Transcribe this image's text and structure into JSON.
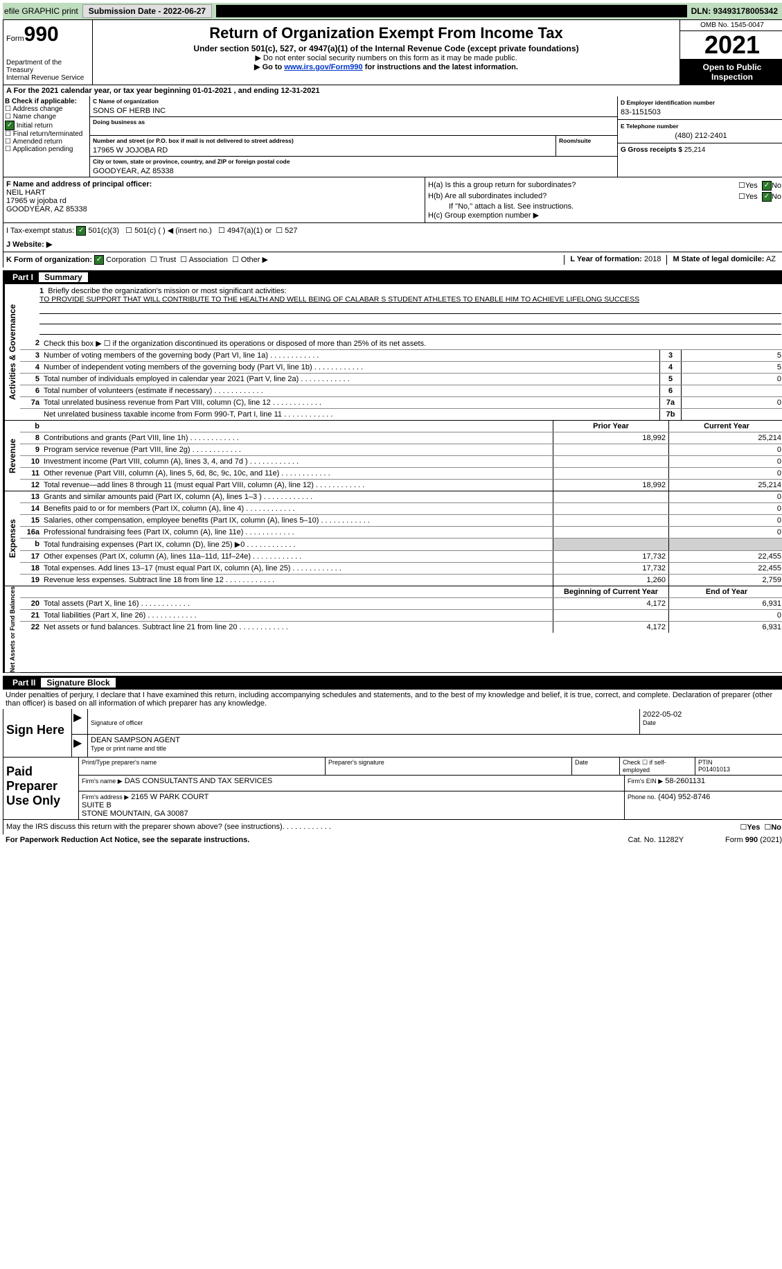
{
  "topbar": {
    "efile": "efile GRAPHIC print",
    "submission": "Submission Date - 2022-06-27",
    "dln": "DLN: 93493178005342"
  },
  "header": {
    "form_word": "Form",
    "form_num": "990",
    "dept": "Department of the Treasury\nInternal Revenue Service",
    "title": "Return of Organization Exempt From Income Tax",
    "subtitle": "Under section 501(c), 527, or 4947(a)(1) of the Internal Revenue Code (except private foundations)",
    "line1": "▶ Do not enter social security numbers on this form as it may be made public.",
    "line2_a": "▶ Go to ",
    "line2_link": "www.irs.gov/Form990",
    "line2_b": " for instructions and the latest information.",
    "omb": "OMB No. 1545-0047",
    "year": "2021",
    "open": "Open to Public Inspection"
  },
  "lineA": "A For the 2021 calendar year, or tax year beginning 01-01-2021    , and ending 12-31-2021",
  "B": {
    "label": "B Check if applicable:",
    "opts": [
      "Address change",
      "Name change",
      "Initial return",
      "Final return/terminated",
      "Amended return",
      "Application pending"
    ],
    "checked": [
      false,
      false,
      true,
      false,
      false,
      false
    ]
  },
  "C": {
    "name_label": "C Name of organization",
    "name": "SONS OF HERB INC",
    "dba_label": "Doing business as",
    "dba": "",
    "street_label": "Number and street (or P.O. box if mail is not delivered to street address)",
    "street": "17965 W JOJOBA RD",
    "room_label": "Room/suite",
    "city_label": "City or town, state or province, country, and ZIP or foreign postal code",
    "city": "GOODYEAR, AZ  85338"
  },
  "D": {
    "label": "D Employer identification number",
    "val": "83-1151503"
  },
  "E": {
    "label": "E Telephone number",
    "val": "(480) 212-2401"
  },
  "G": {
    "label": "G Gross receipts $",
    "val": "25,214"
  },
  "F": {
    "label": "F  Name and address of principal officer:",
    "name": "NEIL HART",
    "addr1": "17965 w jojoba rd",
    "addr2": "GOODYEAR, AZ  85338"
  },
  "H": {
    "a": "H(a)  Is this a group return for subordinates?",
    "a_yes": "Yes",
    "a_no": "No",
    "a_val": "No",
    "b": "H(b)  Are all subordinates included?",
    "b_yes": "Yes",
    "b_no": "No",
    "b_val": "No",
    "b_note": "If \"No,\" attach a list. See instructions.",
    "c": "H(c)  Group exemption number ▶"
  },
  "I": {
    "label": "I    Tax-exempt status:",
    "o1": "501(c)(3)",
    "o2": "501(c) (  ) ◀ (insert no.)",
    "o3": "4947(a)(1) or",
    "o4": "527"
  },
  "J": {
    "label": "J   Website: ▶"
  },
  "K": {
    "label": "K Form of organization:",
    "o1": "Corporation",
    "o2": "Trust",
    "o3": "Association",
    "o4": "Other ▶"
  },
  "L": {
    "label": "L Year of formation:",
    "val": "2018"
  },
  "M": {
    "label": "M State of legal domicile:",
    "val": "AZ"
  },
  "part1": {
    "num": "Part I",
    "title": "Summary",
    "line1_label": "Briefly describe the organization's mission or most significant activities:",
    "mission": "TO PROVIDE SUPPORT THAT WILL CONTRIBUTE TO THE HEALTH AND WELL BEING OF CALABAR S STUDENT ATHLETES TO ENABLE HIM TO ACHIEVE LIFELONG SUCCESS",
    "line2": "Check this box ▶ ☐  if the organization discontinued its operations or disposed of more than 25% of its net assets.",
    "rows": [
      {
        "n": "3",
        "d": "Number of voting members of the governing body (Part VI, line 1a)",
        "box": "3",
        "v": "5"
      },
      {
        "n": "4",
        "d": "Number of independent voting members of the governing body (Part VI, line 1b)",
        "box": "4",
        "v": "5"
      },
      {
        "n": "5",
        "d": "Total number of individuals employed in calendar year 2021 (Part V, line 2a)",
        "box": "5",
        "v": "0"
      },
      {
        "n": "6",
        "d": "Total number of volunteers (estimate if necessary)",
        "box": "6",
        "v": ""
      },
      {
        "n": "7a",
        "d": "Total unrelated business revenue from Part VIII, column (C), line 12",
        "box": "7a",
        "v": "0"
      },
      {
        "n": "",
        "d": "Net unrelated business taxable income from Form 990-T, Part I, line 11",
        "box": "7b",
        "v": ""
      }
    ],
    "col_prior": "Prior Year",
    "col_curr": "Current Year",
    "rev": [
      {
        "n": "8",
        "d": "Contributions and grants (Part VIII, line 1h)",
        "p": "18,992",
        "c": "25,214"
      },
      {
        "n": "9",
        "d": "Program service revenue (Part VIII, line 2g)",
        "p": "",
        "c": "0"
      },
      {
        "n": "10",
        "d": "Investment income (Part VIII, column (A), lines 3, 4, and 7d )",
        "p": "",
        "c": "0"
      },
      {
        "n": "11",
        "d": "Other revenue (Part VIII, column (A), lines 5, 6d, 8c, 9c, 10c, and 11e)",
        "p": "",
        "c": "0"
      },
      {
        "n": "12",
        "d": "Total revenue—add lines 8 through 11 (must equal Part VIII, column (A), line 12)",
        "p": "18,992",
        "c": "25,214"
      }
    ],
    "exp": [
      {
        "n": "13",
        "d": "Grants and similar amounts paid (Part IX, column (A), lines 1–3 )",
        "p": "",
        "c": "0"
      },
      {
        "n": "14",
        "d": "Benefits paid to or for members (Part IX, column (A), line 4)",
        "p": "",
        "c": "0"
      },
      {
        "n": "15",
        "d": "Salaries, other compensation, employee benefits (Part IX, column (A), lines 5–10)",
        "p": "",
        "c": "0"
      },
      {
        "n": "16a",
        "d": "Professional fundraising fees (Part IX, column (A), line 11e)",
        "p": "",
        "c": "0"
      },
      {
        "n": "b",
        "d": "Total fundraising expenses (Part IX, column (D), line 25) ▶0",
        "p": "shade",
        "c": "shade"
      },
      {
        "n": "17",
        "d": "Other expenses (Part IX, column (A), lines 11a–11d, 11f–24e)",
        "p": "17,732",
        "c": "22,455"
      },
      {
        "n": "18",
        "d": "Total expenses. Add lines 13–17 (must equal Part IX, column (A), line 25)",
        "p": "17,732",
        "c": "22,455"
      },
      {
        "n": "19",
        "d": "Revenue less expenses. Subtract line 18 from line 12",
        "p": "1,260",
        "c": "2,759"
      }
    ],
    "col_beg": "Beginning of Current Year",
    "col_end": "End of Year",
    "net": [
      {
        "n": "20",
        "d": "Total assets (Part X, line 16)",
        "p": "4,172",
        "c": "6,931"
      },
      {
        "n": "21",
        "d": "Total liabilities (Part X, line 26)",
        "p": "",
        "c": "0"
      },
      {
        "n": "22",
        "d": "Net assets or fund balances. Subtract line 21 from line 20",
        "p": "4,172",
        "c": "6,931"
      }
    ],
    "side_ag": "Activities & Governance",
    "side_rev": "Revenue",
    "side_exp": "Expenses",
    "side_net": "Net Assets or Fund Balances"
  },
  "part2": {
    "num": "Part II",
    "title": "Signature Block",
    "decl": "Under penalties of perjury, I declare that I have examined this return, including accompanying schedules and statements, and to the best of my knowledge and belief, it is true, correct, and complete. Declaration of preparer (other than officer) is based on all information of which preparer has any knowledge."
  },
  "sign": {
    "label": "Sign Here",
    "sig_label": "Signature of officer",
    "date_label": "Date",
    "date": "2022-05-02",
    "name": "DEAN SAMPSON  AGENT",
    "name_label": "Type or print name and title"
  },
  "prep": {
    "label": "Paid Preparer Use Only",
    "c1": "Print/Type preparer's name",
    "c2": "Preparer's signature",
    "c3": "Date",
    "c4": "Check ☐ if self-employed",
    "c5_label": "PTIN",
    "c5": "P01401013",
    "firm_label": "Firm's name    ▶",
    "firm": "DAS CONSULTANTS AND TAX SERVICES",
    "ein_label": "Firm's EIN ▶",
    "ein": "58-2601131",
    "addr_label": "Firm's address ▶",
    "addr": "2165 W PARK COURT\nSUITE B\nSTONE MOUNTAIN, GA  30087",
    "phone_label": "Phone no.",
    "phone": "(404) 952-8746"
  },
  "may": {
    "q": "May the IRS discuss this return with the preparer shown above? (see instructions)",
    "yes": "Yes",
    "no": "No"
  },
  "footer": {
    "l": "For Paperwork Reduction Act Notice, see the separate instructions.",
    "m": "Cat. No. 11282Y",
    "r": "Form 990 (2021)"
  }
}
